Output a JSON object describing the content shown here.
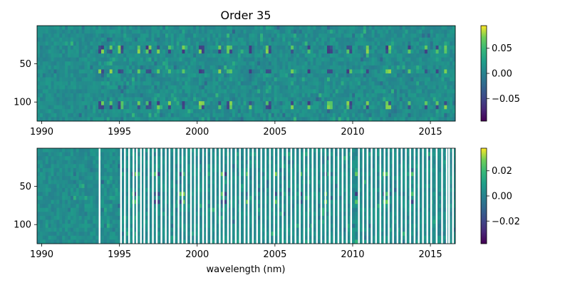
{
  "chart_data": [
    {
      "type": "heatmap",
      "title": "Order 35",
      "xlabel": "",
      "ylabel": "",
      "xlim": [
        1989.7,
        2016.6
      ],
      "ylim": [
        125,
        0
      ],
      "xticks": [
        1990,
        1995,
        2000,
        2005,
        2010,
        2015
      ],
      "xtick_labels": [
        "1990",
        "1995",
        "2000",
        "2005",
        "2010",
        "2015"
      ],
      "yticks": [
        50,
        100
      ],
      "ytick_labels": [
        "50",
        "100"
      ],
      "colormap": "viridis",
      "colorbar": {
        "vmin": -0.095,
        "vmax": 0.095,
        "ticks": [
          0.05,
          0.0,
          -0.05
        ],
        "tick_labels": [
          "0.05",
          "0.00",
          "−0.05"
        ]
      },
      "strong_columns": [
        1993.8,
        1994.4,
        1995.1,
        1996.2,
        1996.9,
        1997.5,
        1998.2,
        1999.1,
        2000.3,
        2001.5,
        2002.1,
        2003.4,
        2004.6,
        2006.1,
        2007.2,
        2008.5,
        2009.8,
        2011.0,
        2012.3,
        2013.6,
        2014.7,
        2015.4,
        2016.0
      ],
      "strong_rows": [
        28,
        35,
        60,
        100,
        105
      ],
      "gaps": []
    },
    {
      "type": "heatmap",
      "title": "",
      "xlabel": "wavelength (nm)",
      "ylabel": "",
      "xlim": [
        1989.7,
        2016.6
      ],
      "ylim": [
        125,
        0
      ],
      "xticks": [
        1990,
        1995,
        2000,
        2005,
        2010,
        2015
      ],
      "xtick_labels": [
        "1990",
        "1995",
        "2000",
        "2005",
        "2010",
        "2015"
      ],
      "yticks": [
        50,
        100
      ],
      "ytick_labels": [
        "50",
        "100"
      ],
      "colormap": "viridis",
      "colorbar": {
        "vmin": -0.038,
        "vmax": 0.038,
        "ticks": [
          0.02,
          0.0,
          -0.02
        ],
        "tick_labels": [
          "0.02",
          "0.00",
          "−0.02"
        ]
      },
      "strong_columns": [
        1996.0,
        1997.4,
        1999.0,
        2001.7,
        2003.2,
        2005.0,
        2006.6,
        2008.3,
        2010.2,
        2012.1,
        2013.8
      ],
      "strong_rows": [
        35,
        60,
        70
      ],
      "gaps": [
        1993.72,
        1995.1,
        1995.35,
        1995.62,
        1995.9,
        1996.12,
        1996.38,
        1996.6,
        1996.88,
        1997.15,
        1997.4,
        1997.7,
        1997.98,
        1998.22,
        1998.52,
        1998.8,
        1999.05,
        1999.32,
        1999.6,
        1999.85,
        2000.1,
        2000.38,
        2000.62,
        2000.9,
        2001.18,
        2001.45,
        2001.7,
        2001.98,
        2002.2,
        2002.48,
        2002.75,
        2003.05,
        2003.3,
        2003.58,
        2003.85,
        2004.12,
        2004.4,
        2004.68,
        2004.95,
        2005.22,
        2005.5,
        2005.78,
        2006.05,
        2006.32,
        2006.6,
        2006.88,
        2007.15,
        2007.42,
        2007.7,
        2007.98,
        2008.25,
        2008.52,
        2008.8,
        2009.08,
        2009.35,
        2009.62,
        2009.9,
        2010.4,
        2010.68,
        2010.95,
        2011.22,
        2011.5,
        2011.78,
        2012.05,
        2012.32,
        2012.6,
        2012.88,
        2013.15,
        2013.42,
        2013.7,
        2013.98,
        2014.25,
        2014.52,
        2014.8,
        2015.05,
        2015.4,
        2015.75,
        2016.05,
        2016.2,
        2016.45
      ]
    }
  ]
}
